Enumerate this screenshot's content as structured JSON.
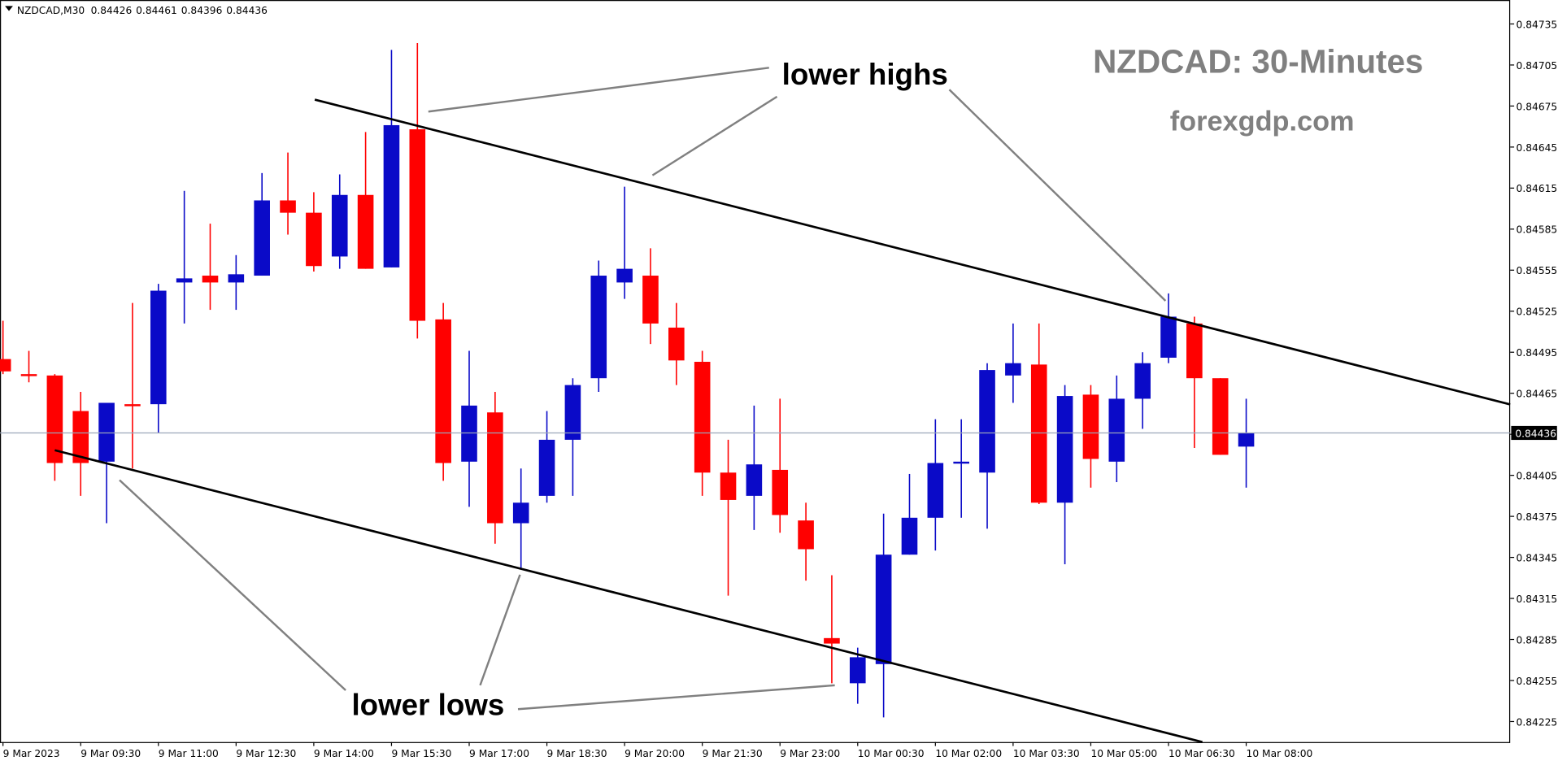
{
  "chart_data": {
    "type": "candlestick",
    "title": "NZDCAD,M30",
    "subtitle": "NZDCAD: 30-Minutes",
    "source": "forexgdp.com",
    "annotations": [
      "lower highs",
      "lower lows"
    ],
    "x": [
      "9 Mar 2023",
      null,
      null,
      "9 Mar 09:30",
      null,
      null,
      "9 Mar 11:00",
      null,
      null,
      "9 Mar 12:30",
      null,
      null,
      "9 Mar 14:00",
      null,
      null,
      "9 Mar 15:30",
      null,
      null,
      "9 Mar 17:00",
      null,
      null,
      "9 Mar 18:30",
      null,
      null,
      "9 Mar 20:00",
      null,
      null,
      "9 Mar 21:30",
      null,
      null,
      "9 Mar 23:00",
      null,
      null,
      "10 Mar 00:30",
      null,
      null,
      "10 Mar 02:00",
      null,
      null,
      "10 Mar 03:30",
      null,
      null,
      "10 Mar 05:00",
      null,
      null,
      "10 Mar 06:30",
      null,
      null,
      "10 Mar 08:00"
    ],
    "open": [
      0.8449,
      0.84479,
      0.84478,
      0.84452,
      0.84415,
      0.84457,
      0.84457,
      0.84546,
      0.84551,
      0.84546,
      0.84551,
      0.84606,
      0.84597,
      0.84565,
      0.8461,
      0.84557,
      0.84658,
      0.84519,
      0.84415,
      0.84451,
      0.8437,
      0.8439,
      0.84431,
      0.84476,
      0.84546,
      0.84551,
      0.84513,
      0.84488,
      0.84407,
      0.8439,
      0.84409,
      0.84372,
      0.84286,
      0.84253,
      0.84267,
      0.84347,
      0.84374,
      0.84414,
      0.84407,
      0.84478,
      0.84486,
      0.84385,
      0.84464,
      0.84415,
      0.84461,
      0.84491,
      0.84516,
      0.84476,
      0.84426
    ],
    "high": [
      0.84518,
      0.84496,
      0.84479,
      0.84466,
      0.84458,
      0.84531,
      0.84545,
      0.84613,
      0.84589,
      0.84566,
      0.84626,
      0.84641,
      0.84612,
      0.84625,
      0.84656,
      0.84716,
      0.84721,
      0.84531,
      0.84496,
      0.84466,
      0.8441,
      0.84452,
      0.84476,
      0.84562,
      0.84616,
      0.84571,
      0.84531,
      0.84496,
      0.84431,
      0.84456,
      0.84461,
      0.84385,
      0.84332,
      0.84279,
      0.84377,
      0.84406,
      0.84446,
      0.84446,
      0.84487,
      0.84516,
      0.84516,
      0.84471,
      0.84471,
      0.84478,
      0.84495,
      0.84538,
      0.84521,
      0.84476,
      0.84461
    ],
    "low": [
      0.84479,
      0.84473,
      0.84401,
      0.8439,
      0.8437,
      0.8441,
      0.84436,
      0.84516,
      0.84526,
      0.84526,
      0.84551,
      0.84581,
      0.84554,
      0.84556,
      0.84556,
      0.84557,
      0.84505,
      0.84401,
      0.84382,
      0.84355,
      0.84336,
      0.84385,
      0.8439,
      0.84466,
      0.84534,
      0.84501,
      0.84471,
      0.8439,
      0.84317,
      0.84365,
      0.84363,
      0.84328,
      0.84253,
      0.84238,
      0.84228,
      0.84347,
      0.8435,
      0.84374,
      0.84366,
      0.84458,
      0.84384,
      0.8434,
      0.84396,
      0.844,
      0.84439,
      0.84487,
      0.84425,
      0.8442,
      0.84396
    ],
    "close": [
      0.84481,
      0.84478,
      0.84414,
      0.84414,
      0.84458,
      0.84456,
      0.8454,
      0.84549,
      0.84546,
      0.84552,
      0.84606,
      0.84597,
      0.84558,
      0.8461,
      0.84556,
      0.84661,
      0.84518,
      0.84414,
      0.84456,
      0.8437,
      0.84385,
      0.84431,
      0.84471,
      0.84551,
      0.84556,
      0.84516,
      0.84489,
      0.84407,
      0.84387,
      0.84413,
      0.84376,
      0.84351,
      0.84282,
      0.84272,
      0.84347,
      0.84374,
      0.84414,
      0.84415,
      0.84482,
      0.84487,
      0.84385,
      0.84463,
      0.84417,
      0.84461,
      0.84487,
      0.84521,
      0.84476,
      0.8442,
      0.84436
    ],
    "up_color": "#0a0ac8",
    "down_color": "#ff0000",
    "ylim": [
      0.8421,
      0.847525
    ],
    "yticks": [
      0.84225,
      0.84255,
      0.84285,
      0.84315,
      0.84345,
      0.84375,
      0.84405,
      0.84435,
      0.84465,
      0.84495,
      0.84525,
      0.84555,
      0.84585,
      0.84615,
      0.84645,
      0.84675,
      0.84705,
      0.84735
    ]
  }
}
